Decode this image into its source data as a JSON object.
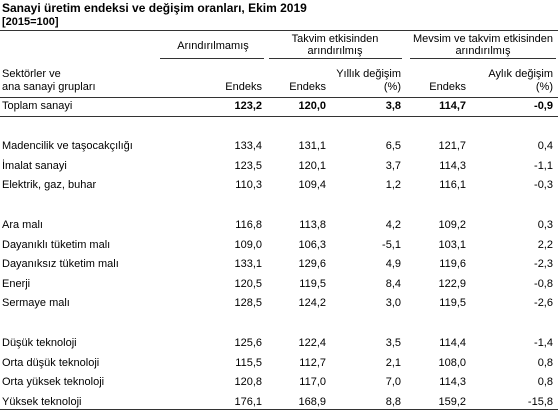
{
  "header": {
    "title": "Sanayi üretim endeksi ve değişim oranları, Ekim 2019",
    "subtitle": "[2015=100]"
  },
  "table": {
    "group_headers": [
      "Arındırılmamış",
      "Takvim etkisinden arındırılmış",
      "Mevsim ve takvim etkisinden arındırılmış"
    ],
    "row_header": [
      "Sektörler ve",
      "ana sanayi grupları"
    ],
    "columns": [
      [
        "Endeks"
      ],
      [
        "Endeks"
      ],
      [
        "Yıllık değişim",
        "(%)"
      ],
      [
        "Endeks"
      ],
      [
        "Aylık değişim",
        "(%)"
      ]
    ],
    "total": {
      "label": "Toplam sanayi",
      "values": [
        "123,2",
        "120,0",
        "3,8",
        "114,7",
        "-0,9"
      ]
    },
    "groups": [
      [
        {
          "label": "Madencilik ve taşocakçılığı",
          "values": [
            "133,4",
            "131,1",
            "6,5",
            "121,7",
            "0,4"
          ]
        },
        {
          "label": "İmalat sanayi",
          "values": [
            "123,5",
            "120,1",
            "3,7",
            "114,3",
            "-1,1"
          ]
        },
        {
          "label": "Elektrik, gaz, buhar",
          "values": [
            "110,3",
            "109,4",
            "1,2",
            "116,1",
            "-0,3"
          ]
        }
      ],
      [
        {
          "label": "Ara malı",
          "values": [
            "116,8",
            "113,8",
            "4,2",
            "109,2",
            "0,3"
          ]
        },
        {
          "label": "Dayanıklı tüketim malı",
          "values": [
            "109,0",
            "106,3",
            "-5,1",
            "103,1",
            "2,2"
          ]
        },
        {
          "label": "Dayanıksız tüketim malı",
          "values": [
            "133,1",
            "129,6",
            "4,9",
            "119,6",
            "-2,3"
          ]
        },
        {
          "label": "Enerji",
          "values": [
            "120,5",
            "119,5",
            "8,4",
            "122,9",
            "-0,8"
          ]
        },
        {
          "label": "Sermaye malı",
          "values": [
            "128,5",
            "124,2",
            "3,0",
            "119,5",
            "-2,6"
          ]
        }
      ],
      [
        {
          "label": "Düşük teknoloji",
          "values": [
            "125,6",
            "122,4",
            "3,5",
            "114,4",
            "-1,4"
          ]
        },
        {
          "label": "Orta düşük teknoloji",
          "values": [
            "115,5",
            "112,7",
            "2,1",
            "108,0",
            "0,8"
          ]
        },
        {
          "label": "Orta yüksek teknoloji",
          "values": [
            "120,8",
            "117,0",
            "7,0",
            "114,3",
            "0,8"
          ]
        },
        {
          "label": "Yüksek teknoloji",
          "values": [
            "176,1",
            "168,9",
            "8,8",
            "159,2",
            "-15,8"
          ]
        }
      ]
    ]
  }
}
